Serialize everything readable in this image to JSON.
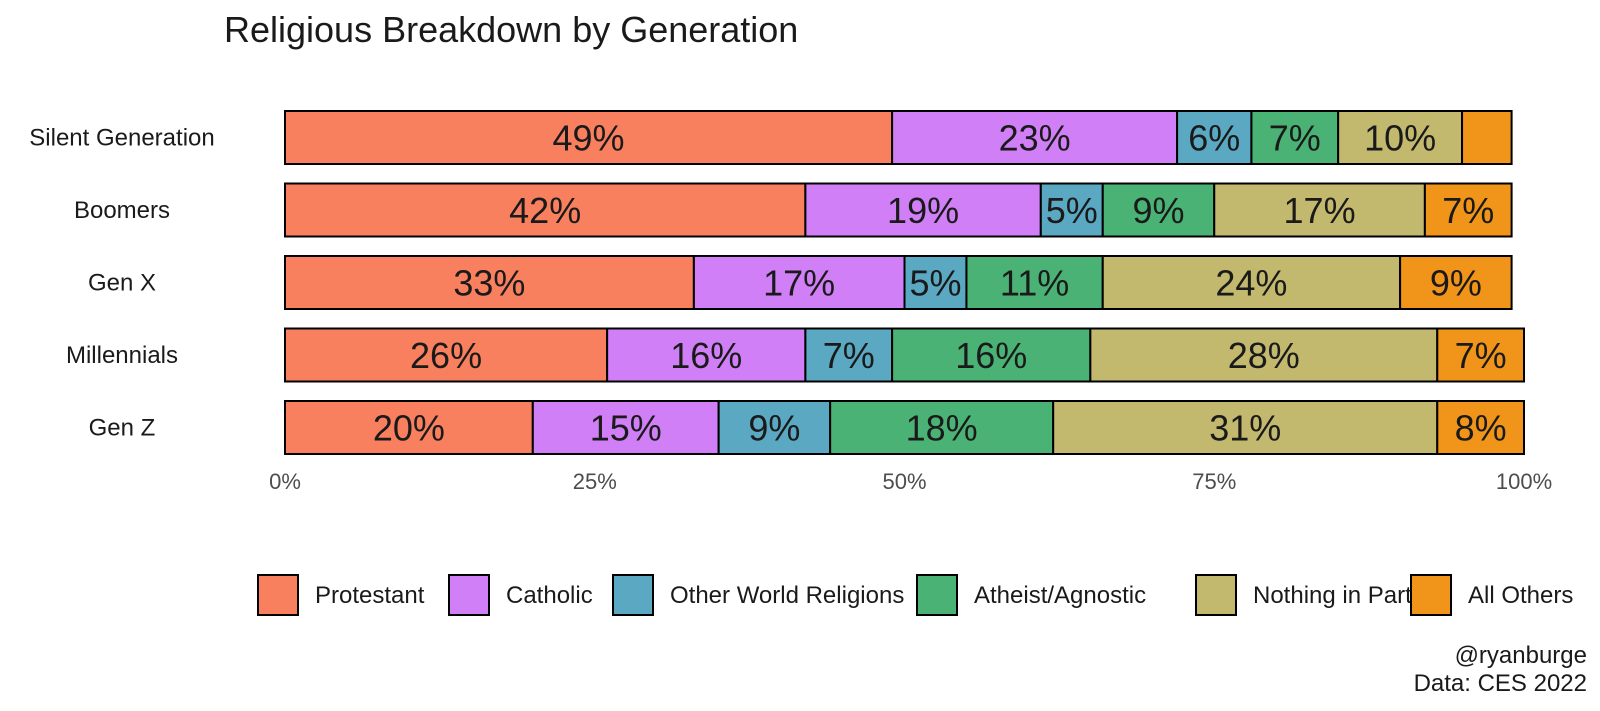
{
  "chart_data": {
    "type": "bar",
    "orientation": "horizontal",
    "stacked": true,
    "title": "Religious Breakdown by Generation",
    "categories": [
      "Silent Generation",
      "Boomers",
      "Gen X",
      "Millennials",
      "Gen Z"
    ],
    "series": [
      {
        "name": "Protestant",
        "color": "#F8805E",
        "values": [
          49,
          42,
          33,
          26,
          20
        ]
      },
      {
        "name": "Catholic",
        "color": "#D07FF6",
        "values": [
          23,
          19,
          17,
          16,
          15
        ]
      },
      {
        "name": "Other World Religions",
        "color": "#5AA8C2",
        "values": [
          6,
          5,
          5,
          7,
          9
        ]
      },
      {
        "name": "Atheist/Agnostic",
        "color": "#4AB274",
        "values": [
          7,
          9,
          11,
          16,
          18
        ]
      },
      {
        "name": "Nothing in Part.",
        "color": "#C2B86E",
        "values": [
          10,
          17,
          24,
          28,
          31
        ]
      },
      {
        "name": "All Others",
        "color": "#F0941A",
        "values": [
          4,
          7,
          9,
          7,
          8
        ]
      }
    ],
    "data_labels": [
      [
        "49%",
        "23%",
        "6%",
        "7%",
        "10%",
        ""
      ],
      [
        "42%",
        "19%",
        "5%",
        "9%",
        "17%",
        "7%"
      ],
      [
        "33%",
        "17%",
        "5%",
        "11%",
        "24%",
        "9%"
      ],
      [
        "26%",
        "16%",
        "7%",
        "16%",
        "28%",
        "7%"
      ],
      [
        "20%",
        "15%",
        "9%",
        "18%",
        "31%",
        "8%"
      ]
    ],
    "x_ticks": [
      "0%",
      "25%",
      "50%",
      "75%",
      "100%"
    ],
    "x_tick_values": [
      0,
      25,
      50,
      75,
      100
    ],
    "xlim": [
      0,
      100
    ],
    "xlabel": "",
    "ylabel": "",
    "grid": false,
    "legend_position": "bottom"
  },
  "caption": {
    "line1": "@ryanburge",
    "line2": "Data: CES 2022"
  }
}
